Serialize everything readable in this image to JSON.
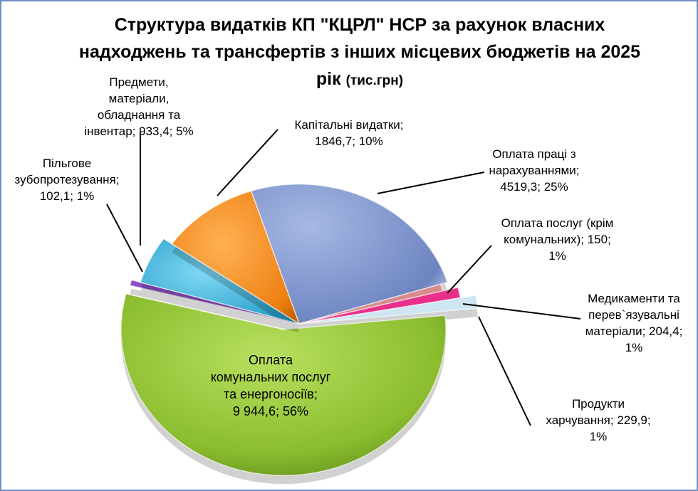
{
  "title": "Структура видатків КП \"КЦРЛ\" НСР за рахунок власних надходжень та трансфертів з інших місцевих бюджетів  на 2025 рік",
  "title_unit": "(тис.грн)",
  "colors": {
    "border": "#6f8fc4",
    "communal": "#8bbd2f",
    "salary": "#7a8fc4",
    "capital": "#f2891e",
    "materials": "#2ab2dd",
    "dental": "#8a4fc4",
    "services": "#d98a8a",
    "medicines": "#e8308a",
    "food": "#cfe6f2"
  },
  "chart_data": {
    "type": "pie",
    "title": "Структура видатків КП \"КЦРЛ\" НСР за рахунок власних надходжень та трансфертів з інших місцевих бюджетів  на 2025 рік (тис.грн)",
    "series": [
      {
        "name": "Оплата праці з нарахуваннями",
        "value": 4519.3,
        "percent": 25
      },
      {
        "name": "Оплата послуг (крім комунальних)",
        "value": 150,
        "percent": 1
      },
      {
        "name": "Медикаменти та перев`язувальні матеріали",
        "value": 204.4,
        "percent": 1
      },
      {
        "name": "Продукти харчування",
        "value": 229.9,
        "percent": 1
      },
      {
        "name": "Оплата комунальних послуг та енергоносіїв",
        "value": 9944.6,
        "percent": 56
      },
      {
        "name": "Пільгове зубопротезування",
        "value": 102.1,
        "percent": 1
      },
      {
        "name": "Предмети, матеріали, обладнання та інвентар",
        "value": 933.4,
        "percent": 5
      },
      {
        "name": "Капітальні видатки",
        "value": 1846.7,
        "percent": 10
      }
    ]
  },
  "labels": {
    "salary": [
      "Оплата праці з",
      "нарахуваннями;",
      "4519,3; 25%"
    ],
    "services": [
      "Оплата послуг (крім",
      "комунальних); 150;",
      "1%"
    ],
    "medicines": [
      "Медикаменти та",
      "перев`язувальні",
      "матеріали; 204,4;",
      "1%"
    ],
    "food": [
      "Продукти",
      "харчування; 229,9;",
      "1%"
    ],
    "communal": [
      "Оплата",
      "комунальних послуг",
      "та енергоносіїв;",
      "9 944,6; 56%"
    ],
    "dental": [
      "Пільгове",
      "зубопротезування;",
      "102,1; 1%"
    ],
    "materials": [
      "Предмети,",
      "матеріали,",
      "обладнання та",
      "інвентар; 933,4; 5%"
    ],
    "capital": [
      "Капітальні видатки;",
      "1846,7; 10%"
    ]
  }
}
